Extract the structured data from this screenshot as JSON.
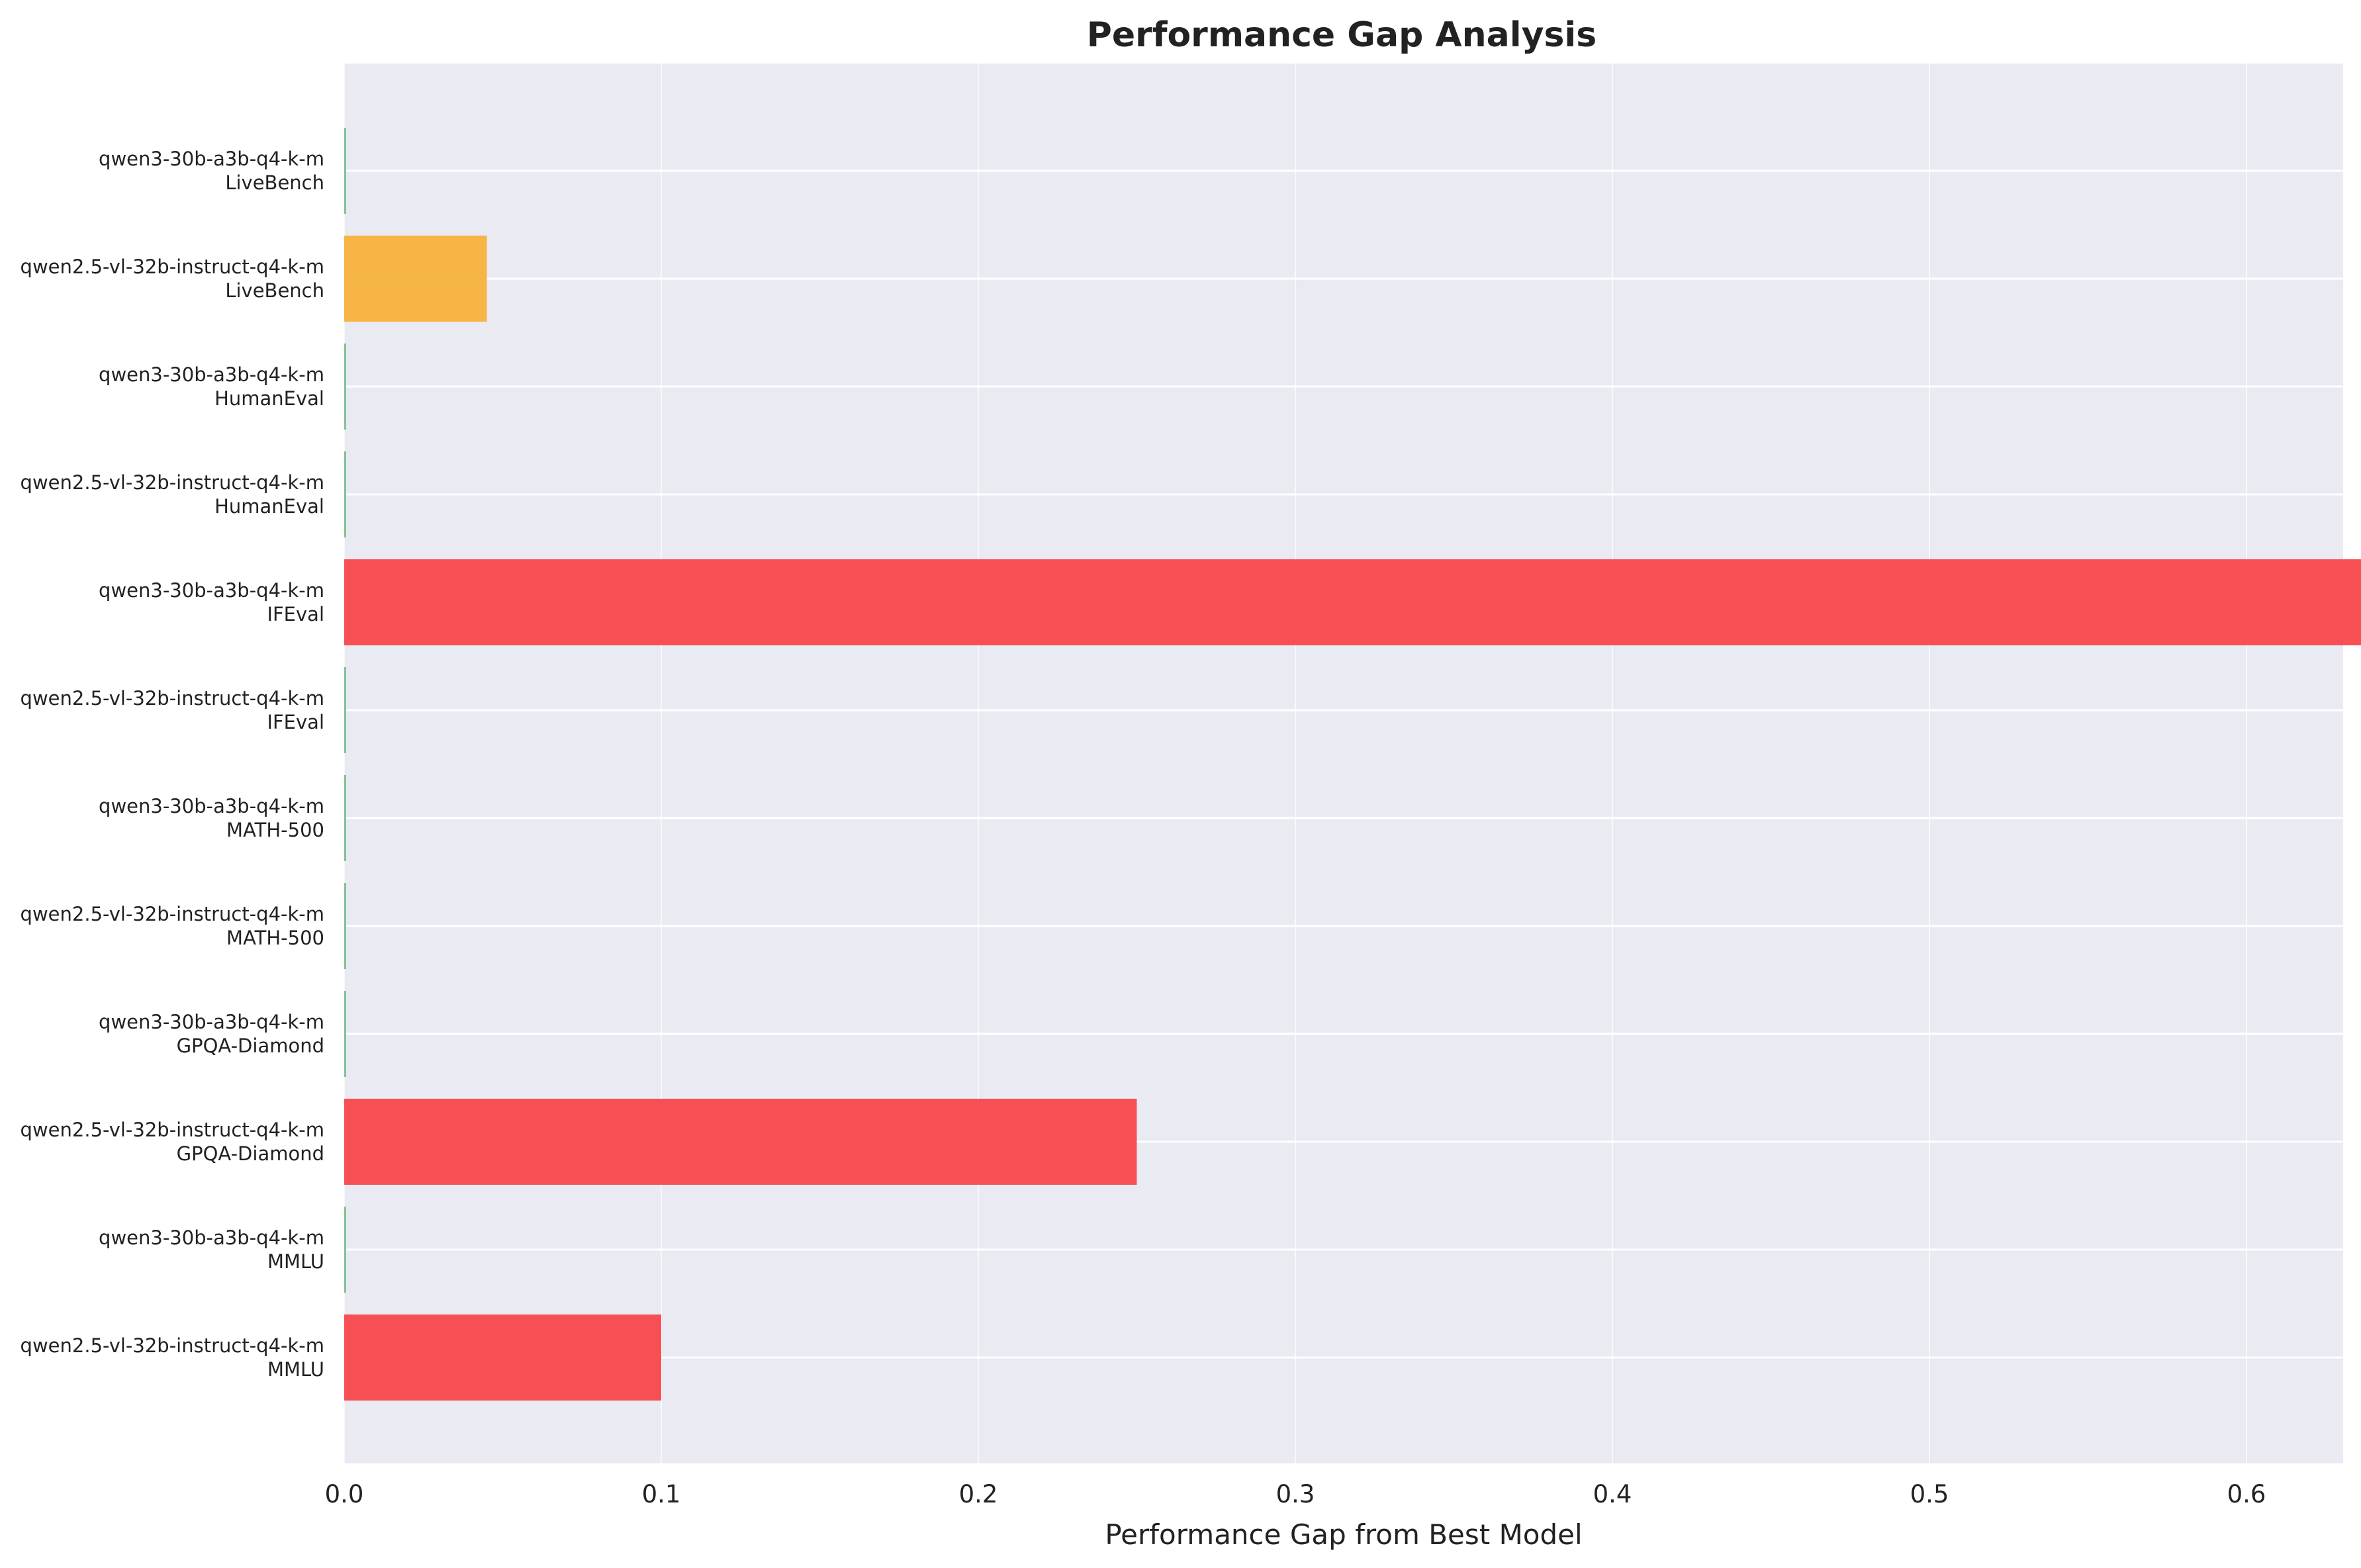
{
  "chart_data": {
    "type": "bar",
    "orientation": "horizontal",
    "title": "Performance Gap Analysis",
    "xlabel": "Performance Gap from Best Model",
    "ylabel": "",
    "xlim": [
      0,
      0.68
    ],
    "xticks": [
      "0.0",
      "0.1",
      "0.2",
      "0.3",
      "0.4",
      "0.5",
      "0.6"
    ],
    "grid": true,
    "categories": [
      {
        "model": "qwen3-30b-a3b-q4-k-m",
        "benchmark": "LiveBench"
      },
      {
        "model": "qwen2.5-vl-32b-instruct-q4-k-m",
        "benchmark": "LiveBench"
      },
      {
        "model": "qwen3-30b-a3b-q4-k-m",
        "benchmark": "HumanEval"
      },
      {
        "model": "qwen2.5-vl-32b-instruct-q4-k-m",
        "benchmark": "HumanEval"
      },
      {
        "model": "qwen3-30b-a3b-q4-k-m",
        "benchmark": "IFEval"
      },
      {
        "model": "qwen2.5-vl-32b-instruct-q4-k-m",
        "benchmark": "IFEval"
      },
      {
        "model": "qwen3-30b-a3b-q4-k-m",
        "benchmark": "MATH-500"
      },
      {
        "model": "qwen2.5-vl-32b-instruct-q4-k-m",
        "benchmark": "MATH-500"
      },
      {
        "model": "qwen3-30b-a3b-q4-k-m",
        "benchmark": "GPQA-Diamond"
      },
      {
        "model": "qwen2.5-vl-32b-instruct-q4-k-m",
        "benchmark": "GPQA-Diamond"
      },
      {
        "model": "qwen3-30b-a3b-q4-k-m",
        "benchmark": "MMLU"
      },
      {
        "model": "qwen2.5-vl-32b-instruct-q4-k-m",
        "benchmark": "MMLU"
      }
    ],
    "values": [
      0.0,
      0.045,
      0.0,
      0.0,
      0.65,
      0.0,
      0.0,
      0.0,
      0.0,
      0.25,
      0.0,
      0.1
    ],
    "colors": {
      "zero": "#7fbf8f",
      "small": "#f7b23b",
      "large": "#f9474b",
      "background": "#eaeaf2",
      "grid": "#ffffff"
    }
  }
}
